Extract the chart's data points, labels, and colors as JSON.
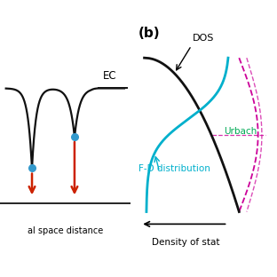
{
  "bg_color": "#ffffff",
  "label_b": "(b)",
  "label_EC": "EC",
  "label_DOS": "DOS",
  "label_Urbach": "Urbach",
  "label_FD": "F-D distribution",
  "label_xaxis_left": "al space distance",
  "label_xaxis_right": "Density of stat",
  "curve_color_black": "#111111",
  "curve_color_cyan": "#00b0cc",
  "curve_color_green": "#00aa55",
  "curve_color_magenta": "#cc0099",
  "dot_color": "#3399cc",
  "arrow_color": "#cc2200"
}
